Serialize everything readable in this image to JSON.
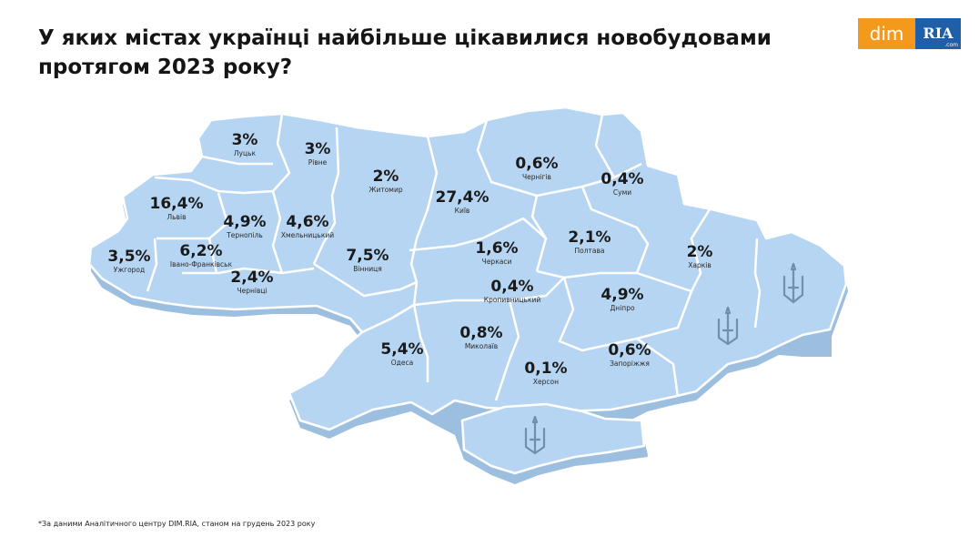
{
  "title": "У яких містах українці найбільше цікавилися новобудовами протягом 2023 року?",
  "logo": {
    "dim_text": "dim",
    "ria_text": "RIA",
    "ria_sub": ".com"
  },
  "colors": {
    "region_fill": "#b6d5f2",
    "region_edge": "#9dbfdf",
    "region_border": "#ffffff",
    "logo_orange": "#f39a1d",
    "logo_blue": "#1f5ea8"
  },
  "regions": [
    {
      "id": "lutsk",
      "city": "Луцьк",
      "share": "3%"
    },
    {
      "id": "rivne",
      "city": "Рівне",
      "share": "3%"
    },
    {
      "id": "zhytomyr",
      "city": "Житомир",
      "share": "2%"
    },
    {
      "id": "kyiv",
      "city": "Київ",
      "share": "27,4%"
    },
    {
      "id": "chernihiv",
      "city": "Чернігів",
      "share": "0,6%"
    },
    {
      "id": "sumy",
      "city": "Суми",
      "share": "0,4%"
    },
    {
      "id": "lviv",
      "city": "Львів",
      "share": "16,4%"
    },
    {
      "id": "ternopil",
      "city": "Тернопіль",
      "share": "4,9%"
    },
    {
      "id": "khmelnytskyi",
      "city": "Хмельницький",
      "share": "4,6%"
    },
    {
      "id": "uzhhorod",
      "city": "Ужгород",
      "share": "3,5%"
    },
    {
      "id": "ivano-frankivsk",
      "city": "Івано-Франківськ",
      "share": "6,2%"
    },
    {
      "id": "chernivtsi",
      "city": "Чернівці",
      "share": "2,4%"
    },
    {
      "id": "vinnytsia",
      "city": "Вінниця",
      "share": "7,5%"
    },
    {
      "id": "cherkasy",
      "city": "Черкаси",
      "share": "1,6%"
    },
    {
      "id": "poltava",
      "city": "Полтава",
      "share": "2,1%"
    },
    {
      "id": "kharkiv",
      "city": "Харків",
      "share": "2%"
    },
    {
      "id": "kropyvnytskyi",
      "city": "Кропивницький",
      "share": "0,4%"
    },
    {
      "id": "dnipro",
      "city": "Дніпро",
      "share": "4,9%"
    },
    {
      "id": "odesa",
      "city": "Одеса",
      "share": "5,4%"
    },
    {
      "id": "mykolaiv",
      "city": "Миколаїв",
      "share": "0,8%"
    },
    {
      "id": "kherson",
      "city": "Херсон",
      "share": "0,1%"
    },
    {
      "id": "zaporizhzhia",
      "city": "Запоріжжя",
      "share": "0,6%"
    }
  ],
  "footnote": "*За даними Аналітичного центру DIM.RIA, станом на грудень 2023 року"
}
